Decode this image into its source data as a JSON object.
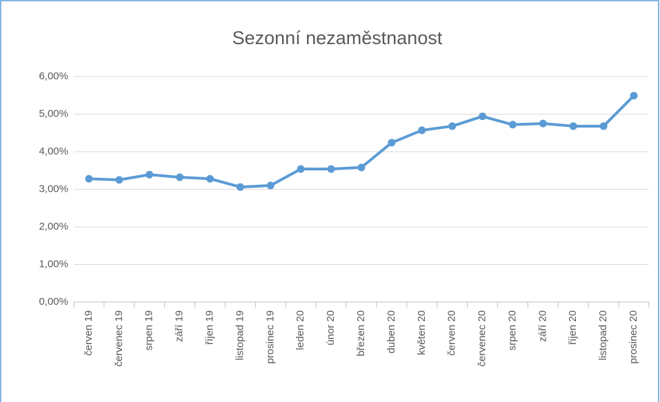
{
  "chart_data": {
    "type": "line",
    "title": "Sezonní nezaměstnanost",
    "categories": [
      "červen 19",
      "červenec 19",
      "srpen 19",
      "září 19",
      "říjen 19",
      "listopad 19",
      "prosinec 19",
      "leden 20",
      "únor 20",
      "březen 20",
      "duben 20",
      "květen 20",
      "červen 20",
      "červenec 20",
      "srpen 20",
      "září 20",
      "říjen 20",
      "listopad 20",
      "prosinec 20"
    ],
    "values": [
      3.28,
      3.25,
      3.39,
      3.32,
      3.28,
      3.06,
      3.1,
      3.54,
      3.54,
      3.58,
      4.24,
      4.57,
      4.68,
      4.94,
      4.72,
      4.75,
      4.68,
      4.68,
      5.49
    ],
    "color": "#5b9bd5",
    "ylim": [
      0,
      6
    ],
    "yticks": [
      {
        "value": 0,
        "label": "0,00%"
      },
      {
        "value": 1,
        "label": "1,00%"
      },
      {
        "value": 2,
        "label": "2,00%"
      },
      {
        "value": 3,
        "label": "3,00%"
      },
      {
        "value": 4,
        "label": "4,00%"
      },
      {
        "value": 5,
        "label": "5,00%"
      },
      {
        "value": 6,
        "label": "6,00%"
      }
    ],
    "grid": true
  }
}
